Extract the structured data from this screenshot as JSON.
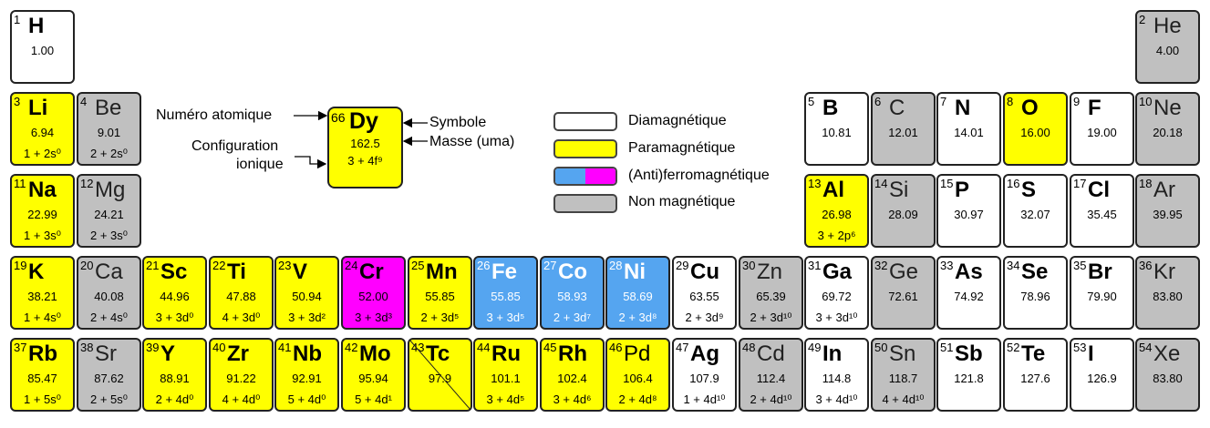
{
  "colors": {
    "dia": "#ffffff",
    "para": "#ffff00",
    "ferro": "#55a5f0",
    "antiferro": "#ff00ff",
    "non": "#c0c0c0"
  },
  "legend": [
    {
      "label": "Diamagnétique",
      "type": "dia"
    },
    {
      "label": "Paramagnétique",
      "type": "para"
    },
    {
      "label": "(Anti)ferromagnétique",
      "type": "ferro"
    },
    {
      "label": "Non magnétique",
      "type": "non"
    }
  ],
  "example": {
    "number": "66",
    "symbol": "Dy",
    "mass": "162.5",
    "config": "3 + 4f⁹",
    "label_number": "Numéro atomique",
    "label_config_1": "Configuration",
    "label_config_2": "ionique",
    "label_symbol": "Symbole",
    "label_mass": "Masse (uma)"
  },
  "elements": [
    {
      "n": "1",
      "sym": "H",
      "mass": "1.00",
      "cfg": "",
      "type": "dia",
      "row": 0,
      "col": 0,
      "bold": true
    },
    {
      "n": "2",
      "sym": "He",
      "mass": "4.00",
      "cfg": "",
      "type": "non",
      "row": 0,
      "col": 17,
      "bold": false
    },
    {
      "n": "3",
      "sym": "Li",
      "mass": "6.94",
      "cfg": "1 + 2s⁰",
      "type": "para",
      "row": 1,
      "col": 0,
      "bold": true
    },
    {
      "n": "4",
      "sym": "Be",
      "mass": "9.01",
      "cfg": "2 + 2s⁰",
      "type": "non",
      "row": 1,
      "col": 1,
      "bold": false
    },
    {
      "n": "5",
      "sym": "B",
      "mass": "10.81",
      "cfg": "",
      "type": "dia",
      "row": 1,
      "col": 12,
      "bold": true
    },
    {
      "n": "6",
      "sym": "C",
      "mass": "12.01",
      "cfg": "",
      "type": "non",
      "row": 1,
      "col": 13,
      "bold": false
    },
    {
      "n": "7",
      "sym": "N",
      "mass": "14.01",
      "cfg": "",
      "type": "dia",
      "row": 1,
      "col": 14,
      "bold": true
    },
    {
      "n": "8",
      "sym": "O",
      "mass": "16.00",
      "cfg": "",
      "type": "para",
      "row": 1,
      "col": 15,
      "bold": true
    },
    {
      "n": "9",
      "sym": "F",
      "mass": "19.00",
      "cfg": "",
      "type": "dia",
      "row": 1,
      "col": 16,
      "bold": true
    },
    {
      "n": "10",
      "sym": "Ne",
      "mass": "20.18",
      "cfg": "",
      "type": "non",
      "row": 1,
      "col": 17,
      "bold": false
    },
    {
      "n": "11",
      "sym": "Na",
      "mass": "22.99",
      "cfg": "1 + 3s⁰",
      "type": "para",
      "row": 2,
      "col": 0,
      "bold": true
    },
    {
      "n": "12",
      "sym": "Mg",
      "mass": "24.21",
      "cfg": "2 + 3s⁰",
      "type": "non",
      "row": 2,
      "col": 1,
      "bold": false
    },
    {
      "n": "13",
      "sym": "Al",
      "mass": "26.98",
      "cfg": "3 + 2p⁶",
      "type": "para",
      "row": 2,
      "col": 12,
      "bold": true
    },
    {
      "n": "14",
      "sym": "Si",
      "mass": "28.09",
      "cfg": "",
      "type": "non",
      "row": 2,
      "col": 13,
      "bold": false
    },
    {
      "n": "15",
      "sym": "P",
      "mass": "30.97",
      "cfg": "",
      "type": "dia",
      "row": 2,
      "col": 14,
      "bold": true
    },
    {
      "n": "16",
      "sym": "S",
      "mass": "32.07",
      "cfg": "",
      "type": "dia",
      "row": 2,
      "col": 15,
      "bold": true
    },
    {
      "n": "17",
      "sym": "Cl",
      "mass": "35.45",
      "cfg": "",
      "type": "dia",
      "row": 2,
      "col": 16,
      "bold": true
    },
    {
      "n": "18",
      "sym": "Ar",
      "mass": "39.95",
      "cfg": "",
      "type": "non",
      "row": 2,
      "col": 17,
      "bold": false
    },
    {
      "n": "19",
      "sym": "K",
      "mass": "38.21",
      "cfg": "1 + 4s⁰",
      "type": "para",
      "row": 3,
      "col": 0,
      "bold": true
    },
    {
      "n": "20",
      "sym": "Ca",
      "mass": "40.08",
      "cfg": "2 + 4s⁰",
      "type": "non",
      "row": 3,
      "col": 1,
      "bold": false
    },
    {
      "n": "21",
      "sym": "Sc",
      "mass": "44.96",
      "cfg": "3 + 3d⁰",
      "type": "para",
      "row": 3,
      "col": 2,
      "bold": true
    },
    {
      "n": "22",
      "sym": "Ti",
      "mass": "47.88",
      "cfg": "4 + 3d⁰",
      "type": "para",
      "row": 3,
      "col": 3,
      "bold": true
    },
    {
      "n": "23",
      "sym": "V",
      "mass": "50.94",
      "cfg": "3 + 3d²",
      "type": "para",
      "row": 3,
      "col": 4,
      "bold": true
    },
    {
      "n": "24",
      "sym": "Cr",
      "mass": "52.00",
      "cfg": "3 + 3d³",
      "type": "antiferro",
      "row": 3,
      "col": 5,
      "bold": true
    },
    {
      "n": "25",
      "sym": "Mn",
      "mass": "55.85",
      "cfg": "2 + 3d⁵",
      "type": "para",
      "row": 3,
      "col": 6,
      "bold": true
    },
    {
      "n": "26",
      "sym": "Fe",
      "mass": "55.85",
      "cfg": "3 + 3d⁵",
      "type": "ferro",
      "row": 3,
      "col": 7,
      "bold": true
    },
    {
      "n": "27",
      "sym": "Co",
      "mass": "58.93",
      "cfg": "2 + 3d⁷",
      "type": "ferro",
      "row": 3,
      "col": 8,
      "bold": true
    },
    {
      "n": "28",
      "sym": "Ni",
      "mass": "58.69",
      "cfg": "2 + 3d⁸",
      "type": "ferro",
      "row": 3,
      "col": 9,
      "bold": true
    },
    {
      "n": "29",
      "sym": "Cu",
      "mass": "63.55",
      "cfg": "2 + 3d⁹",
      "type": "dia",
      "row": 3,
      "col": 10,
      "bold": true
    },
    {
      "n": "30",
      "sym": "Zn",
      "mass": "65.39",
      "cfg": "2 + 3d¹⁰",
      "type": "non",
      "row": 3,
      "col": 11,
      "bold": false
    },
    {
      "n": "31",
      "sym": "Ga",
      "mass": "69.72",
      "cfg": "3 + 3d¹⁰",
      "type": "dia",
      "row": 3,
      "col": 12,
      "bold": true
    },
    {
      "n": "32",
      "sym": "Ge",
      "mass": "72.61",
      "cfg": "",
      "type": "non",
      "row": 3,
      "col": 13,
      "bold": false
    },
    {
      "n": "33",
      "sym": "As",
      "mass": "74.92",
      "cfg": "",
      "type": "dia",
      "row": 3,
      "col": 14,
      "bold": true
    },
    {
      "n": "34",
      "sym": "Se",
      "mass": "78.96",
      "cfg": "",
      "type": "dia",
      "row": 3,
      "col": 15,
      "bold": true
    },
    {
      "n": "35",
      "sym": "Br",
      "mass": "79.90",
      "cfg": "",
      "type": "dia",
      "row": 3,
      "col": 16,
      "bold": true
    },
    {
      "n": "36",
      "sym": "Kr",
      "mass": "83.80",
      "cfg": "",
      "type": "non",
      "row": 3,
      "col": 17,
      "bold": false
    },
    {
      "n": "37",
      "sym": "Rb",
      "mass": "85.47",
      "cfg": "1 + 5s⁰",
      "type": "para",
      "row": 4,
      "col": 0,
      "bold": true
    },
    {
      "n": "38",
      "sym": "Sr",
      "mass": "87.62",
      "cfg": "2 + 5s⁰",
      "type": "non",
      "row": 4,
      "col": 1,
      "bold": false
    },
    {
      "n": "39",
      "sym": "Y",
      "mass": "88.91",
      "cfg": "2 + 4d⁰",
      "type": "para",
      "row": 4,
      "col": 2,
      "bold": true
    },
    {
      "n": "40",
      "sym": "Zr",
      "mass": "91.22",
      "cfg": "4 + 4d⁰",
      "type": "para",
      "row": 4,
      "col": 3,
      "bold": true
    },
    {
      "n": "41",
      "sym": "Nb",
      "mass": "92.91",
      "cfg": "5 + 4d⁰",
      "type": "para",
      "row": 4,
      "col": 4,
      "bold": true
    },
    {
      "n": "42",
      "sym": "Mo",
      "mass": "95.94",
      "cfg": "5 + 4d¹",
      "type": "para",
      "row": 4,
      "col": 5,
      "bold": true
    },
    {
      "n": "43",
      "sym": "Tc",
      "mass": "97.9",
      "cfg": "",
      "type": "para",
      "row": 4,
      "col": 6,
      "bold": true,
      "slash": true
    },
    {
      "n": "44",
      "sym": "Ru",
      "mass": "101.1",
      "cfg": "3 + 4d⁵",
      "type": "para",
      "row": 4,
      "col": 7,
      "bold": true
    },
    {
      "n": "45",
      "sym": "Rh",
      "mass": "102.4",
      "cfg": "3 + 4d⁶",
      "type": "para",
      "row": 4,
      "col": 8,
      "bold": true
    },
    {
      "n": "46",
      "sym": "Pd",
      "mass": "106.4",
      "cfg": "2 + 4d⁸",
      "type": "para",
      "row": 4,
      "col": 9,
      "bold": false
    },
    {
      "n": "47",
      "sym": "Ag",
      "mass": "107.9",
      "cfg": "1 + 4d¹⁰",
      "type": "dia",
      "row": 4,
      "col": 10,
      "bold": true
    },
    {
      "n": "48",
      "sym": "Cd",
      "mass": "112.4",
      "cfg": "2 + 4d¹⁰",
      "type": "non",
      "row": 4,
      "col": 11,
      "bold": false
    },
    {
      "n": "49",
      "sym": "In",
      "mass": "114.8",
      "cfg": "3 + 4d¹⁰",
      "type": "dia",
      "row": 4,
      "col": 12,
      "bold": true
    },
    {
      "n": "50",
      "sym": "Sn",
      "mass": "118.7",
      "cfg": "4 + 4d¹⁰",
      "type": "non",
      "row": 4,
      "col": 13,
      "bold": false
    },
    {
      "n": "51",
      "sym": "Sb",
      "mass": "121.8",
      "cfg": "",
      "type": "dia",
      "row": 4,
      "col": 14,
      "bold": true
    },
    {
      "n": "52",
      "sym": "Te",
      "mass": "127.6",
      "cfg": "",
      "type": "dia",
      "row": 4,
      "col": 15,
      "bold": true
    },
    {
      "n": "53",
      "sym": "I",
      "mass": "126.9",
      "cfg": "",
      "type": "dia",
      "row": 4,
      "col": 16,
      "bold": true
    },
    {
      "n": "54",
      "sym": "Xe",
      "mass": "83.80",
      "cfg": "",
      "type": "non",
      "row": 4,
      "col": 17,
      "bold": false
    }
  ]
}
